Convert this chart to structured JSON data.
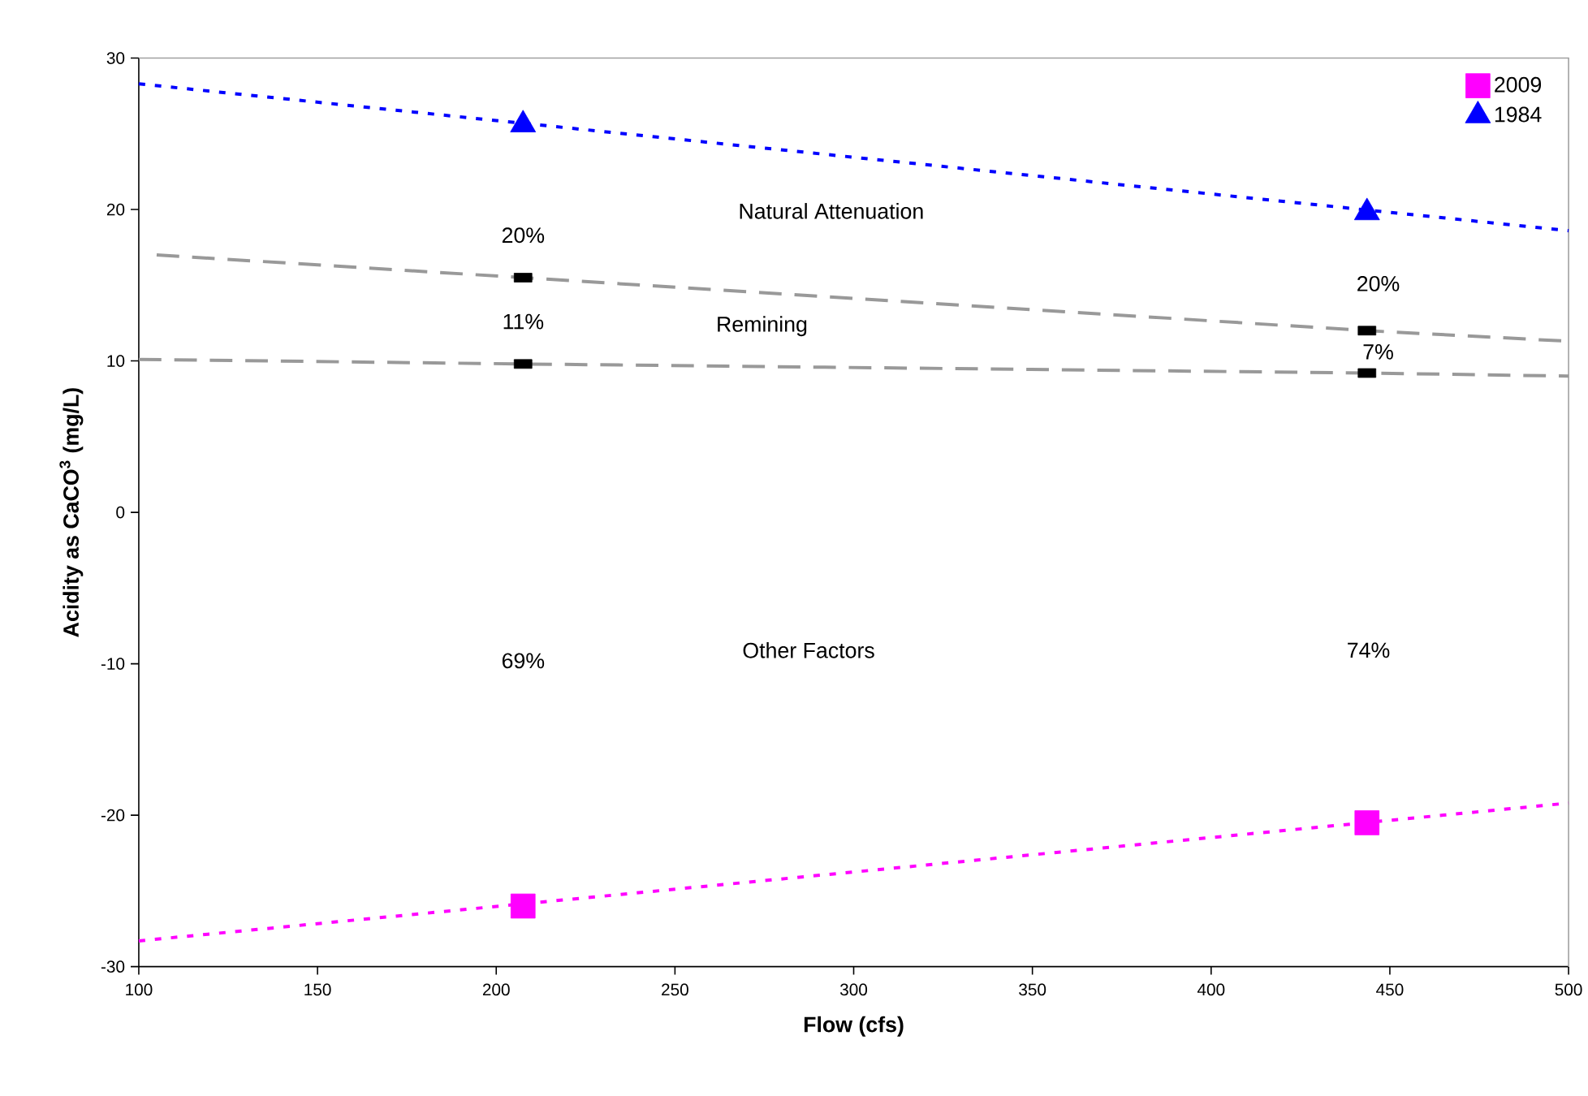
{
  "chart_data": {
    "type": "scatter",
    "xlabel": "Flow (cfs)",
    "ylabel": "Acidity as CaCO$^{3}$ (mg/L)",
    "xlim": [
      100,
      500
    ],
    "xticks": [
      100,
      150,
      200,
      250,
      300,
      350,
      400,
      450,
      500
    ],
    "ylim": [
      -30,
      30
    ],
    "yticks": [
      -30,
      -20,
      -10,
      0,
      10,
      20,
      30
    ],
    "grid": false,
    "legend": "top right",
    "series": [
      {
        "type": "line",
        "color": "#ff00ff",
        "line_style": "dotted",
        "marker": "none",
        "x": [
          100,
          500
        ],
        "values": [
          -28.3,
          -19.2
        ]
      },
      {
        "type": "line",
        "color": "#0000ff",
        "line_style": "dotted",
        "marker": "none",
        "x": [
          100,
          500
        ],
        "values": [
          28.3,
          18.6
        ]
      },
      {
        "type": "line",
        "color": "#999999",
        "line_style": "dashed",
        "marker": "none",
        "x": [
          105,
          207.5,
          443.6,
          500
        ],
        "values": [
          17.0,
          15.5,
          12.0,
          11.3
        ]
      },
      {
        "type": "line",
        "color": "#999999",
        "line_style": "dashed",
        "marker": "none",
        "x": [
          100,
          207.5,
          443.6,
          500
        ],
        "values": [
          10.1,
          9.8,
          9.2,
          9.0
        ]
      },
      {
        "color": "#000000",
        "marker": "square",
        "x": [
          207.5,
          207.5,
          443.6,
          443.6
        ],
        "values": [
          15.5,
          9.8,
          12.0,
          9.2
        ]
      },
      {
        "name": "2009",
        "color": "#ff00ff",
        "marker": "square",
        "x": [
          207.5,
          443.6
        ],
        "values": [
          -26.0,
          -20.5
        ]
      },
      {
        "name": "1984",
        "color": "#0000ff",
        "marker": "triangle",
        "x": [
          207.5,
          443.6
        ],
        "values": [
          25.6,
          19.8
        ]
      }
    ],
    "annotations": [
      "Natural Attenuation",
      "20%",
      "11%",
      "Remining",
      "20%",
      "7%",
      "69%",
      "Other Factors",
      "74%"
    ]
  }
}
